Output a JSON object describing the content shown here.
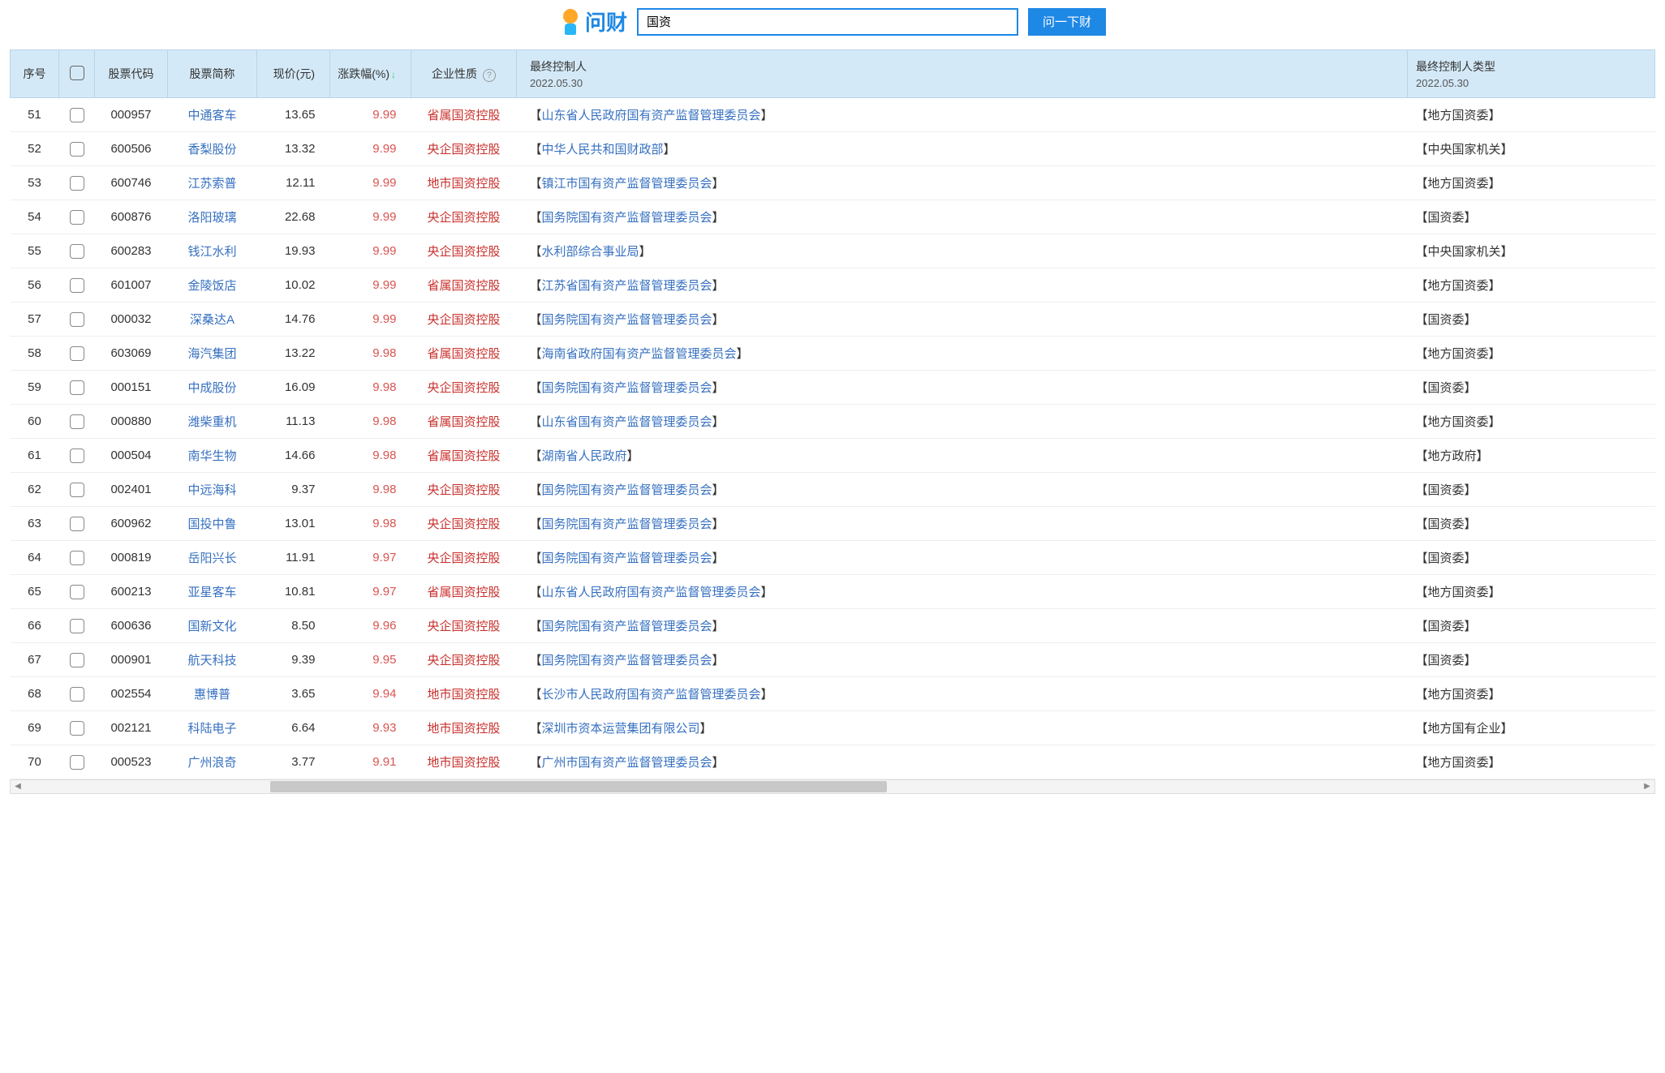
{
  "header": {
    "logo_text": "问财",
    "search_value": "国资",
    "search_button": "问一下财"
  },
  "table": {
    "columns": {
      "seq": "序号",
      "code": "股票代码",
      "name": "股票简称",
      "price": "现价(元)",
      "change": "涨跌幅(%)",
      "nature": "企业性质",
      "controller": "最终控制人",
      "controller_date": "2022.05.30",
      "type": "最终控制人类型",
      "type_date": "2022.05.30"
    },
    "sort_indicator": "↓",
    "help_glyph": "?",
    "colors": {
      "header_bg": "#d4e9f7",
      "link": "#3670c0",
      "change_up": "#d9534f",
      "nature": "#c9302c"
    },
    "rows": [
      {
        "seq": "51",
        "code": "000957",
        "name": "中通客车",
        "price": "13.65",
        "change": "9.99",
        "nature": "省属国资控股",
        "controller": "山东省人民政府国有资产监督管理委员会",
        "type": "地方国资委"
      },
      {
        "seq": "52",
        "code": "600506",
        "name": "香梨股份",
        "price": "13.32",
        "change": "9.99",
        "nature": "央企国资控股",
        "controller": "中华人民共和国财政部",
        "type": "中央国家机关"
      },
      {
        "seq": "53",
        "code": "600746",
        "name": "江苏索普",
        "price": "12.11",
        "change": "9.99",
        "nature": "地市国资控股",
        "controller": "镇江市国有资产监督管理委员会",
        "type": "地方国资委"
      },
      {
        "seq": "54",
        "code": "600876",
        "name": "洛阳玻璃",
        "price": "22.68",
        "change": "9.99",
        "nature": "央企国资控股",
        "controller": "国务院国有资产监督管理委员会",
        "type": "国资委"
      },
      {
        "seq": "55",
        "code": "600283",
        "name": "钱江水利",
        "price": "19.93",
        "change": "9.99",
        "nature": "央企国资控股",
        "controller": "水利部综合事业局",
        "type": "中央国家机关"
      },
      {
        "seq": "56",
        "code": "601007",
        "name": "金陵饭店",
        "price": "10.02",
        "change": "9.99",
        "nature": "省属国资控股",
        "controller": "江苏省国有资产监督管理委员会",
        "type": "地方国资委"
      },
      {
        "seq": "57",
        "code": "000032",
        "name": "深桑达A",
        "price": "14.76",
        "change": "9.99",
        "nature": "央企国资控股",
        "controller": "国务院国有资产监督管理委员会",
        "type": "国资委"
      },
      {
        "seq": "58",
        "code": "603069",
        "name": "海汽集团",
        "price": "13.22",
        "change": "9.98",
        "nature": "省属国资控股",
        "controller": "海南省政府国有资产监督管理委员会",
        "type": "地方国资委"
      },
      {
        "seq": "59",
        "code": "000151",
        "name": "中成股份",
        "price": "16.09",
        "change": "9.98",
        "nature": "央企国资控股",
        "controller": "国务院国有资产监督管理委员会",
        "type": "国资委"
      },
      {
        "seq": "60",
        "code": "000880",
        "name": "潍柴重机",
        "price": "11.13",
        "change": "9.98",
        "nature": "省属国资控股",
        "controller": "山东省国有资产监督管理委员会",
        "type": "地方国资委"
      },
      {
        "seq": "61",
        "code": "000504",
        "name": "南华生物",
        "price": "14.66",
        "change": "9.98",
        "nature": "省属国资控股",
        "controller": "湖南省人民政府",
        "type": "地方政府"
      },
      {
        "seq": "62",
        "code": "002401",
        "name": "中远海科",
        "price": "9.37",
        "change": "9.98",
        "nature": "央企国资控股",
        "controller": "国务院国有资产监督管理委员会",
        "type": "国资委"
      },
      {
        "seq": "63",
        "code": "600962",
        "name": "国投中鲁",
        "price": "13.01",
        "change": "9.98",
        "nature": "央企国资控股",
        "controller": "国务院国有资产监督管理委员会",
        "type": "国资委"
      },
      {
        "seq": "64",
        "code": "000819",
        "name": "岳阳兴长",
        "price": "11.91",
        "change": "9.97",
        "nature": "央企国资控股",
        "controller": "国务院国有资产监督管理委员会",
        "type": "国资委"
      },
      {
        "seq": "65",
        "code": "600213",
        "name": "亚星客车",
        "price": "10.81",
        "change": "9.97",
        "nature": "省属国资控股",
        "controller": "山东省人民政府国有资产监督管理委员会",
        "type": "地方国资委"
      },
      {
        "seq": "66",
        "code": "600636",
        "name": "国新文化",
        "price": "8.50",
        "change": "9.96",
        "nature": "央企国资控股",
        "controller": "国务院国有资产监督管理委员会",
        "type": "国资委"
      },
      {
        "seq": "67",
        "code": "000901",
        "name": "航天科技",
        "price": "9.39",
        "change": "9.95",
        "nature": "央企国资控股",
        "controller": "国务院国有资产监督管理委员会",
        "type": "国资委"
      },
      {
        "seq": "68",
        "code": "002554",
        "name": "惠博普",
        "price": "3.65",
        "change": "9.94",
        "nature": "地市国资控股",
        "controller": "长沙市人民政府国有资产监督管理委员会",
        "type": "地方国资委"
      },
      {
        "seq": "69",
        "code": "002121",
        "name": "科陆电子",
        "price": "6.64",
        "change": "9.93",
        "nature": "地市国资控股",
        "controller": "深圳市资本运营集团有限公司",
        "type": "地方国有企业"
      },
      {
        "seq": "70",
        "code": "000523",
        "name": "广州浪奇",
        "price": "3.77",
        "change": "9.91",
        "nature": "地市国资控股",
        "controller": "广州市国有资产监督管理委员会",
        "type": "地方国资委"
      }
    ]
  }
}
